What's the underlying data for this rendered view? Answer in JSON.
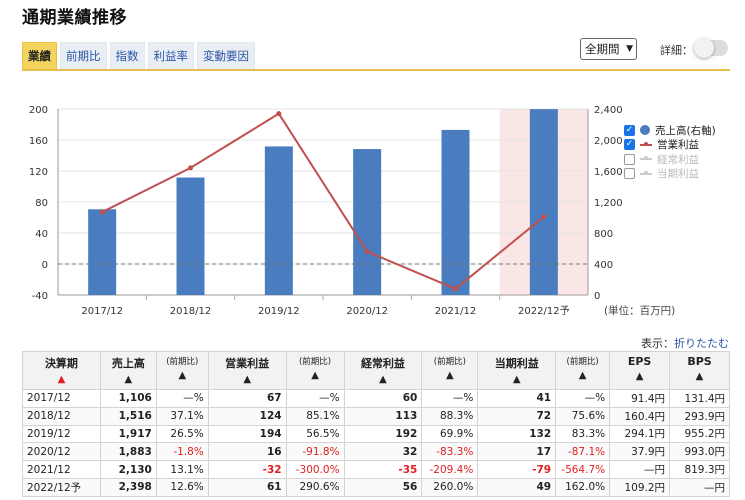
{
  "title": "通期業績推移",
  "tabs": [
    {
      "label": "業績",
      "active": true
    },
    {
      "label": "前期比",
      "active": false
    },
    {
      "label": "指数",
      "active": false
    },
    {
      "label": "利益率",
      "active": false
    },
    {
      "label": "変動要因",
      "active": false
    }
  ],
  "period_select": {
    "value": "全期間"
  },
  "detail": {
    "label": "詳細：",
    "toggle_on": false
  },
  "legend": [
    {
      "label": "売上高(右軸)",
      "checked": true,
      "kind": "dot",
      "color": "#4a7dbf"
    },
    {
      "label": "営業利益",
      "checked": true,
      "kind": "line",
      "color": "#c0504d"
    },
    {
      "label": "経常利益",
      "checked": false,
      "kind": "line",
      "color": "#cccccc"
    },
    {
      "label": "当期利益",
      "checked": false,
      "kind": "line",
      "color": "#cccccc"
    }
  ],
  "unit_label": "(単位：百万円)",
  "display": {
    "label": "表示：",
    "link": "折りたたむ"
  },
  "chart_data": {
    "type": "bar",
    "categories": [
      "2017/12",
      "2018/12",
      "2019/12",
      "2020/12",
      "2021/12",
      "2022/12予"
    ],
    "series": [
      {
        "name": "売上高(右軸)",
        "type": "bar",
        "axis": "right",
        "color": "#4a7dbf",
        "values": [
          1106,
          1516,
          1917,
          1883,
          2130,
          2398
        ]
      },
      {
        "name": "営業利益",
        "type": "line",
        "axis": "left",
        "color": "#c0504d",
        "values": [
          67,
          124,
          194,
          16,
          -32,
          61
        ]
      }
    ],
    "left_axis": {
      "min": -40,
      "max": 200,
      "ticks": [
        "200",
        "160",
        "120",
        "80",
        "40",
        "0",
        "-40"
      ]
    },
    "right_axis": {
      "min": 0,
      "max": 2400,
      "ticks": [
        "2,400",
        "2,000",
        "1,600",
        "1,200",
        "800",
        "400",
        "0"
      ]
    },
    "forecast_index": 5,
    "forecast_color": "#fbe6e6",
    "zero_line": true
  },
  "table": {
    "headers": [
      {
        "label": "決算期",
        "arrow": "▲",
        "arrow_red": true,
        "sub": false
      },
      {
        "label": "売上高",
        "arrow": "▲",
        "sub": false
      },
      {
        "label": "(前期比)",
        "arrow": "▲",
        "sub": true
      },
      {
        "label": "営業利益",
        "arrow": "▲",
        "sub": false
      },
      {
        "label": "(前期比)",
        "arrow": "▲",
        "sub": true
      },
      {
        "label": "経常利益",
        "arrow": "▲",
        "sub": false
      },
      {
        "label": "(前期比)",
        "arrow": "▲",
        "sub": true
      },
      {
        "label": "当期利益",
        "arrow": "▲",
        "sub": false
      },
      {
        "label": "(前期比)",
        "arrow": "▲",
        "sub": true
      },
      {
        "label": "EPS",
        "arrow": "▲",
        "sub": false
      },
      {
        "label": "BPS",
        "arrow": "▲",
        "sub": false
      }
    ],
    "rows": [
      [
        "2017/12",
        "1,106",
        "—%",
        "67",
        "—%",
        "60",
        "—%",
        "41",
        "—%",
        "91.4円",
        "131.4円"
      ],
      [
        "2018/12",
        "1,516",
        "37.1%",
        "124",
        "85.1%",
        "113",
        "88.3%",
        "72",
        "75.6%",
        "160.4円",
        "293.9円"
      ],
      [
        "2019/12",
        "1,917",
        "26.5%",
        "194",
        "56.5%",
        "192",
        "69.9%",
        "132",
        "83.3%",
        "294.1円",
        "955.2円"
      ],
      [
        "2020/12",
        "1,883",
        "-1.8%",
        "16",
        "-91.8%",
        "32",
        "-83.3%",
        "17",
        "-87.1%",
        "37.9円",
        "993.0円"
      ],
      [
        "2021/12",
        "2,130",
        "13.1%",
        "-32",
        "-300.0%",
        "-35",
        "-209.4%",
        "-79",
        "-564.7%",
        "—円",
        "819.3円"
      ],
      [
        "2022/12予",
        "2,398",
        "12.6%",
        "61",
        "290.6%",
        "56",
        "260.0%",
        "49",
        "162.0%",
        "109.2円",
        "—円"
      ]
    ]
  }
}
